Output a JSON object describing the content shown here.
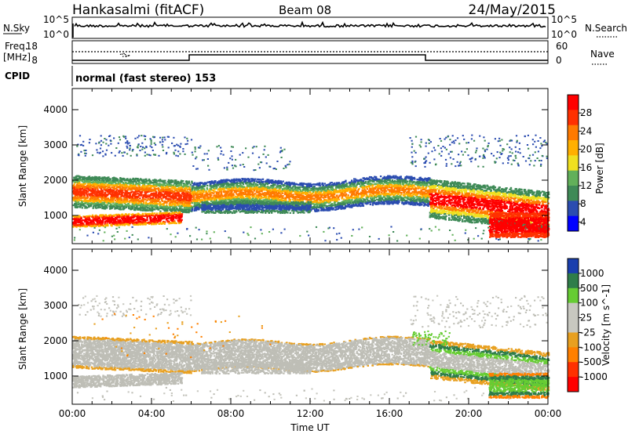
{
  "header": {
    "station": "Hankasalmi (fitACF)",
    "beam": "Beam 08",
    "date": "24/May/2015"
  },
  "panels": {
    "nsky": {
      "left_label": "N.Sky",
      "left_ticks": [
        "10^5",
        "10^0"
      ],
      "right_ticks": [
        "10^5",
        "10^0"
      ],
      "right_label": "N.Search"
    },
    "freq": {
      "left_label_line1": "Freq.",
      "left_label_line2": "[MHz]",
      "left_ticks": [
        "18",
        "8"
      ],
      "right_ticks": [
        "60",
        "0"
      ],
      "right_label": "Nave"
    },
    "cpid": {
      "label": "CPID",
      "mode_text": "normal (fast stereo) 153"
    }
  },
  "colors": {
    "power_scale": [
      "#0000ff",
      "#2b4cb0",
      "#3f8a57",
      "#62b05a",
      "#f0e020",
      "#ffb000",
      "#ff7a00",
      "#ff3000",
      "#ff0000"
    ],
    "velocity_scale": [
      "#1a3fae",
      "#2f7d4a",
      "#66cc33",
      "#c8c8c0",
      "#c8c8c0",
      "#e8a020",
      "#ff8000",
      "#ff3000",
      "#ff0000"
    ],
    "ground_scatter": "#bebeb6"
  },
  "chart_data": [
    {
      "type": "heatmap",
      "title": "",
      "ylabel": "Slant Range [km]",
      "xlabel": "",
      "ylim": [
        200,
        4600
      ],
      "yticks": [
        "4000",
        "3000",
        "2000",
        "1000"
      ],
      "xlim_hours": [
        0,
        24
      ],
      "xticks": [
        "00:00",
        "04:00",
        "08:00",
        "12:00",
        "16:00",
        "20:00",
        "00:00"
      ],
      "colorbar": {
        "label": "Power [dB]",
        "ticks": [
          "28",
          "24",
          "20",
          "16",
          "12",
          "8",
          "4"
        ],
        "range": [
          0,
          30
        ]
      }
    },
    {
      "type": "heatmap",
      "title": "",
      "ylabel": "Slant Range [km]",
      "xlabel": "Time UT",
      "ylim": [
        200,
        4600
      ],
      "yticks": [
        "4000",
        "3000",
        "2000",
        "1000"
      ],
      "xlim_hours": [
        0,
        24
      ],
      "xticks": [
        "00:00",
        "04:00",
        "08:00",
        "12:00",
        "16:00",
        "20:00",
        "00:00"
      ],
      "colorbar": {
        "label": "Velocity [m s^-1]",
        "ticks": [
          "1000",
          "500",
          "100",
          "25",
          "-25",
          "-100",
          "-500",
          "-1000"
        ]
      }
    }
  ],
  "footer": {
    "xlabel": "Time UT"
  }
}
